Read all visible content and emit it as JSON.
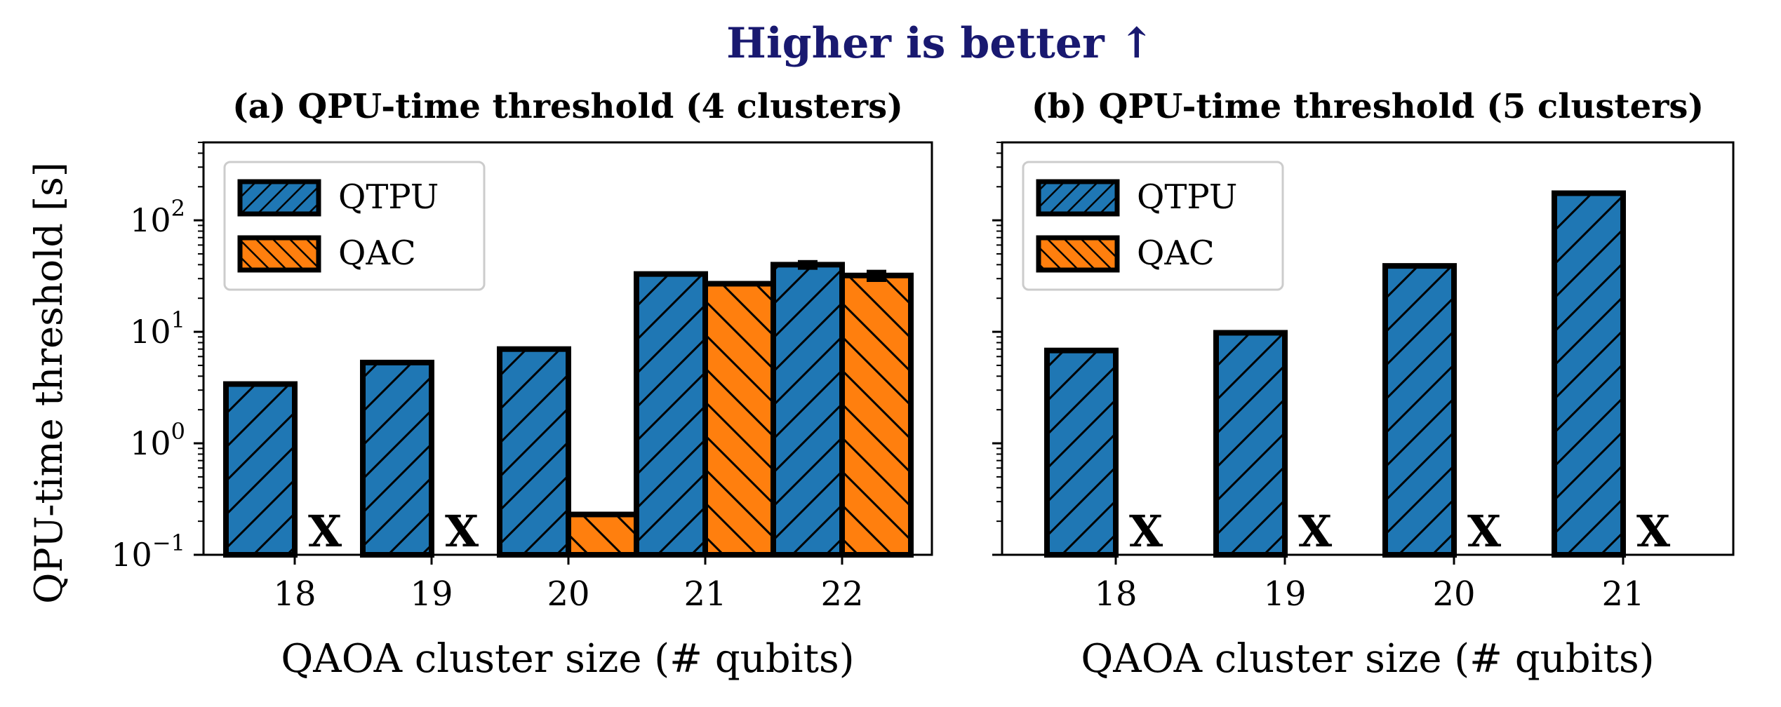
{
  "figure": {
    "suptitle": "Higher is better ↑",
    "ylabel": "QPU-time threshold [s]"
  },
  "colors": {
    "QTPU": "#1f77b4",
    "QAC": "#ff7f0e",
    "suptitle": "#191970",
    "edge": "#000000"
  },
  "chart_data": [
    {
      "type": "bar",
      "title": "(a) QPU-time threshold (4 clusters)",
      "xlabel": "QAOA cluster size (# qubits)",
      "ylabel": "QPU-time threshold [s]",
      "yscale": "log",
      "ylim": [
        0.1,
        500
      ],
      "yticks": [
        0.1,
        1,
        10,
        100
      ],
      "ytick_labels": [
        [
          "10",
          "−1"
        ],
        [
          "10",
          "0"
        ],
        [
          "10",
          "1"
        ],
        [
          "10",
          "2"
        ]
      ],
      "categories": [
        "18",
        "19",
        "20",
        "21",
        "22"
      ],
      "legend": "top-left",
      "missing_marker": "X",
      "series": [
        {
          "name": "QTPU",
          "values": [
            3.4,
            5.3,
            7.0,
            33,
            40
          ],
          "errors": [
            null,
            null,
            null,
            null,
            4
          ],
          "hatch": "/"
        },
        {
          "name": "QAC",
          "values": [
            null,
            null,
            0.23,
            27,
            32
          ],
          "errors": [
            null,
            null,
            null,
            null,
            4
          ],
          "hatch": "\\"
        }
      ]
    },
    {
      "type": "bar",
      "title": "(b) QPU-time threshold (5 clusters)",
      "xlabel": "QAOA cluster size (# qubits)",
      "yscale": "log",
      "ylim": [
        0.1,
        500
      ],
      "yticks": [
        0.1,
        1,
        10,
        100
      ],
      "categories": [
        "18",
        "19",
        "20",
        "21"
      ],
      "legend": "top-left",
      "missing_marker": "X",
      "series": [
        {
          "name": "QTPU",
          "values": [
            6.8,
            9.8,
            39,
            175
          ],
          "hatch": "/"
        },
        {
          "name": "QAC",
          "values": [
            null,
            null,
            null,
            null
          ],
          "hatch": "\\"
        }
      ]
    }
  ]
}
